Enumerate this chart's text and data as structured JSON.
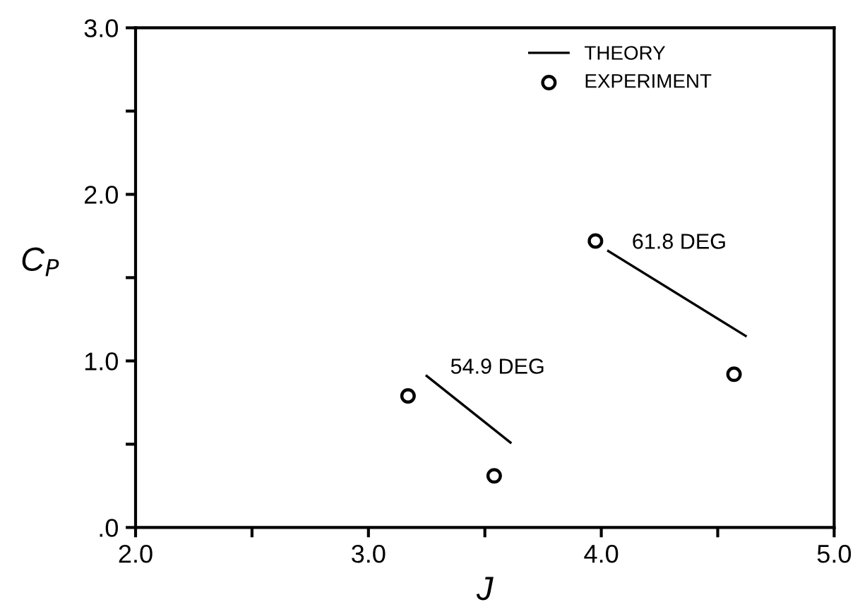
{
  "chart_data": {
    "type": "scatter",
    "xlabel": "J",
    "ylabel": "C$_{P}$",
    "xlim": [
      2.0,
      5.0
    ],
    "xticks": [
      {
        "value": 2.0,
        "label": "2.0"
      },
      {
        "value": 2.5,
        "label": null
      },
      {
        "value": 3.0,
        "label": "3.0"
      },
      {
        "value": 3.5,
        "label": null
      },
      {
        "value": 4.0,
        "label": "4.0"
      },
      {
        "value": 4.5,
        "label": null
      },
      {
        "value": 5.0,
        "label": "5.0"
      }
    ],
    "ylim": [
      0.0,
      3.0
    ],
    "yticks": [
      {
        "value": 0.0,
        "label": ".0"
      },
      {
        "value": 0.5,
        "label": null
      },
      {
        "value": 1.0,
        "label": "1.0"
      },
      {
        "value": 1.5,
        "label": null
      },
      {
        "value": 2.0,
        "label": "2.0"
      },
      {
        "value": 2.5,
        "label": null
      },
      {
        "value": 3.0,
        "label": "3.0"
      }
    ],
    "grid": false,
    "legend": "top right",
    "series": [
      {
        "name": "THEORY",
        "type": "line",
        "color": "#000000",
        "marker": "none",
        "line_style": "solid",
        "x": [
          3.25,
          3.61
        ],
        "values": [
          0.91,
          0.51
        ]
      },
      {
        "type": "line",
        "color": "#000000",
        "marker": "none",
        "line_style": "solid",
        "x": [
          4.03,
          4.62
        ],
        "values": [
          1.66,
          1.15
        ]
      },
      {
        "name": "EXPERIMENT",
        "color": "#000000",
        "marker": "circle",
        "x": [
          3.17,
          3.54,
          3.975,
          4.57
        ],
        "values": [
          0.79,
          0.31,
          1.72,
          0.92
        ]
      }
    ],
    "annotations": [
      {
        "text": "54.9 DEG",
        "x": 3.25,
        "y": 0.91
      },
      {
        "text": "61.8 DEG",
        "x": 4.03,
        "y": 1.66
      }
    ]
  }
}
